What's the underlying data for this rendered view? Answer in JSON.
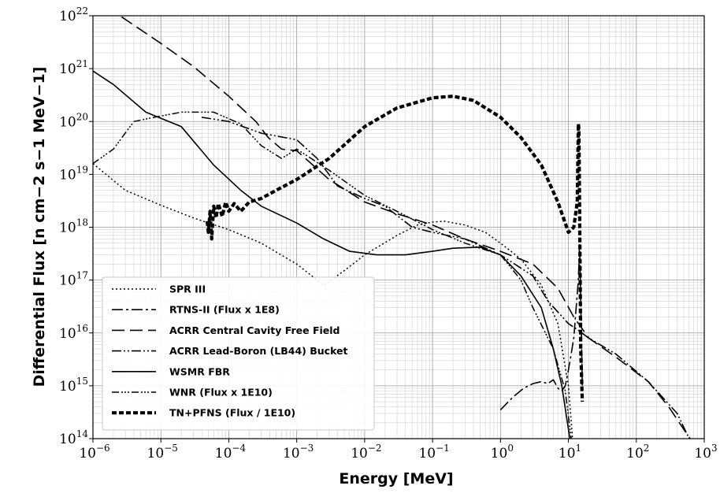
{
  "chart_data": {
    "type": "line",
    "xlabel": "Energy [MeV]",
    "ylabel": "Differential Flux [n cm−2 s−1 MeV−1]",
    "xscale": "log",
    "yscale": "log",
    "xlim": [
      1e-06,
      1000
    ],
    "ylim": [
      100000000000000.0,
      1e+22
    ],
    "x_ticks": [
      {
        "base": "10",
        "exp": "−6"
      },
      {
        "base": "10",
        "exp": "−5"
      },
      {
        "base": "10",
        "exp": "−4"
      },
      {
        "base": "10",
        "exp": "−3"
      },
      {
        "base": "10",
        "exp": "−2"
      },
      {
        "base": "10",
        "exp": "−1"
      },
      {
        "base": "10",
        "exp": "0"
      },
      {
        "base": "10",
        "exp": "1"
      },
      {
        "base": "10",
        "exp": "2"
      },
      {
        "base": "10",
        "exp": "3"
      }
    ],
    "y_ticks": [
      {
        "base": "10",
        "exp": "14"
      },
      {
        "base": "10",
        "exp": "15"
      },
      {
        "base": "10",
        "exp": "16"
      },
      {
        "base": "10",
        "exp": "17"
      },
      {
        "base": "10",
        "exp": "18"
      },
      {
        "base": "10",
        "exp": "19"
      },
      {
        "base": "10",
        "exp": "20"
      },
      {
        "base": "10",
        "exp": "21"
      },
      {
        "base": "10",
        "exp": "22"
      }
    ],
    "grid": "major and minor",
    "legend_position": "lower-left",
    "series": [
      {
        "name": "SPR III",
        "style": "dotted",
        "x": [
          1e-06,
          3e-06,
          1e-05,
          3e-05,
          0.0001,
          0.0003,
          0.001,
          0.0025,
          0.005,
          0.01,
          0.03,
          0.06,
          0.1,
          0.15,
          0.3,
          0.6,
          1,
          2,
          4,
          7,
          10,
          11.5
        ],
        "y": [
          1.6e+19,
          5e+18,
          2.6e+18,
          1.5e+18,
          9e+17,
          5e+17,
          2e+17,
          8e+16,
          1.5e+17,
          3e+17,
          7e+17,
          1.1e+18,
          1.25e+18,
          1.3e+18,
          1.1e+18,
          8e+17,
          5e+17,
          2.5e+17,
          8e+16,
          1.5e+16,
          1000000000000000.0,
          100000000000000.0
        ]
      },
      {
        "name": "RTNS-II (Flux x 1E8)",
        "style": "dash-dot",
        "x": [
          1,
          1.5,
          2.2,
          3,
          4,
          5,
          6,
          7,
          8,
          9,
          10,
          11,
          12,
          13,
          14,
          14.6,
          15,
          15.5,
          16
        ],
        "y": [
          350000000000000.0,
          600000000000000.0,
          900000000000000.0,
          1100000000000000.0,
          1200000000000000.0,
          1100000000000000.0,
          1300000000000000.0,
          900000000000000.0,
          800000000000000.0,
          1000000000000000.0,
          2000000000000000.0,
          4000000000000000.0,
          8000000000000000.0,
          3e+16,
          1e+17,
          5e+17,
          1e+17,
          1e+16,
          1000000000000000.0
        ]
      },
      {
        "name": "ACRR Central Cavity Free Field",
        "style": "long-dash",
        "x": [
          1e-06,
          2.5e-06,
          1e-05,
          3e-05,
          0.0001,
          0.00025,
          0.00038,
          0.0006,
          0.001,
          0.003,
          0.01,
          0.03,
          0.1,
          0.3,
          1,
          3,
          7,
          12,
          20,
          50,
          150,
          300,
          500,
          620
        ],
        "y": [
          2.5e+22,
          1e+22,
          3e+21,
          1.1e+21,
          3e+20,
          1e+20,
          5e+19,
          3e+19,
          2.8e+19,
          8e+18,
          3e+18,
          1.8e+18,
          1.1e+18,
          6e+17,
          3.5e+17,
          2e+17,
          7e+16,
          2e+16,
          8000000000000000.0,
          3500000000000000.0,
          1200000000000000.0,
          400000000000000.0,
          150000000000000.0,
          100000000000000.0
        ]
      },
      {
        "name": "ACRR Lead-Boron (LB44) Bucket",
        "style": "dash-dot-dot",
        "x": [
          4e-05,
          0.0001,
          0.0003,
          0.001,
          0.002,
          0.004,
          0.01,
          0.02,
          0.05,
          0.1,
          0.3,
          1,
          3,
          5,
          10,
          13,
          20,
          50,
          150,
          400,
          600
        ],
        "y": [
          1.2e+20,
          1e+20,
          6e+19,
          4.5e+19,
          2e+19,
          6e+18,
          3.5e+18,
          2.5e+18,
          1e+18,
          8e+17,
          6e+17,
          3e+17,
          1.2e+17,
          4e+16,
          1.5e+16,
          1.2e+16,
          8000000000000000.0,
          4000000000000000.0,
          1200000000000000.0,
          300000000000000.0,
          100000000000000.0
        ]
      },
      {
        "name": "WSMR FBR",
        "style": "solid",
        "x": [
          1e-06,
          2e-06,
          6e-06,
          2e-05,
          6e-05,
          0.00015,
          0.0003,
          0.001,
          0.0025,
          0.006,
          0.015,
          0.04,
          0.1,
          0.2,
          0.5,
          1,
          2,
          4,
          6,
          8,
          10.5
        ],
        "y": [
          9e+20,
          5e+20,
          1.5e+20,
          8e+19,
          1.5e+19,
          5e+18,
          2.5e+18,
          1.2e+18,
          6e+17,
          3.5e+17,
          3e+17,
          3e+17,
          3.5e+17,
          4e+17,
          4.2e+17,
          3e+17,
          1.2e+17,
          3e+16,
          5000000000000000.0,
          1000000000000000.0,
          100000000000000.0
        ]
      },
      {
        "name": "WNR (Flux x 1E10)",
        "style": "dash-dot-dot-short",
        "x": [
          1e-06,
          2e-06,
          4e-06,
          8e-06,
          2e-05,
          6e-05,
          0.00015,
          0.0003,
          0.0006,
          0.001,
          0.003,
          0.01,
          0.03,
          0.1,
          0.3,
          1,
          2,
          3,
          6,
          9,
          11
        ],
        "y": [
          1.6e+19,
          3e+19,
          1e+20,
          1.2e+20,
          1.5e+20,
          1.5e+20,
          9e+19,
          3.5e+19,
          2e+19,
          3e+19,
          1.2e+19,
          4e+18,
          2e+18,
          9e+17,
          5e+17,
          3e+17,
          1e+17,
          3e+16,
          5000000000000000.0,
          800000000000000.0,
          100000000000000.0
        ]
      },
      {
        "name": "TN+PFNS (Flux / 1E10)",
        "style": "thick-dash",
        "x": [
          4.8e-05,
          5e-05,
          5.3e-05,
          5.6e-05,
          6e-05,
          6.5e-05,
          7e-05,
          8e-05,
          9e-05,
          0.0001,
          0.00012,
          0.00015,
          0.0002,
          0.0003,
          0.0005,
          0.001,
          0.003,
          0.01,
          0.03,
          0.1,
          0.2,
          0.4,
          1,
          2,
          4,
          7,
          10,
          12,
          13.5,
          14,
          14.3,
          14.6,
          14.9,
          15.2,
          15.5,
          16
        ],
        "y": [
          1.3e+18,
          8e+17,
          2e+18,
          6e+17,
          2.5e+18,
          1.5e+18,
          2.8e+18,
          1.6e+18,
          3e+18,
          2e+18,
          2.8e+18,
          2e+18,
          3e+18,
          3.5e+18,
          5e+18,
          8e+18,
          2e+19,
          8e+19,
          1.8e+20,
          2.8e+20,
          3e+20,
          2.5e+20,
          1.2e+20,
          5e+19,
          1.5e+19,
          3e+18,
          8e+17,
          1e+18,
          3e+18,
          9e+19,
          7e+19,
          3e+18,
          1e+17,
          5000000000000000.0,
          2000000000000000.0,
          500000000000000.0
        ]
      }
    ]
  }
}
